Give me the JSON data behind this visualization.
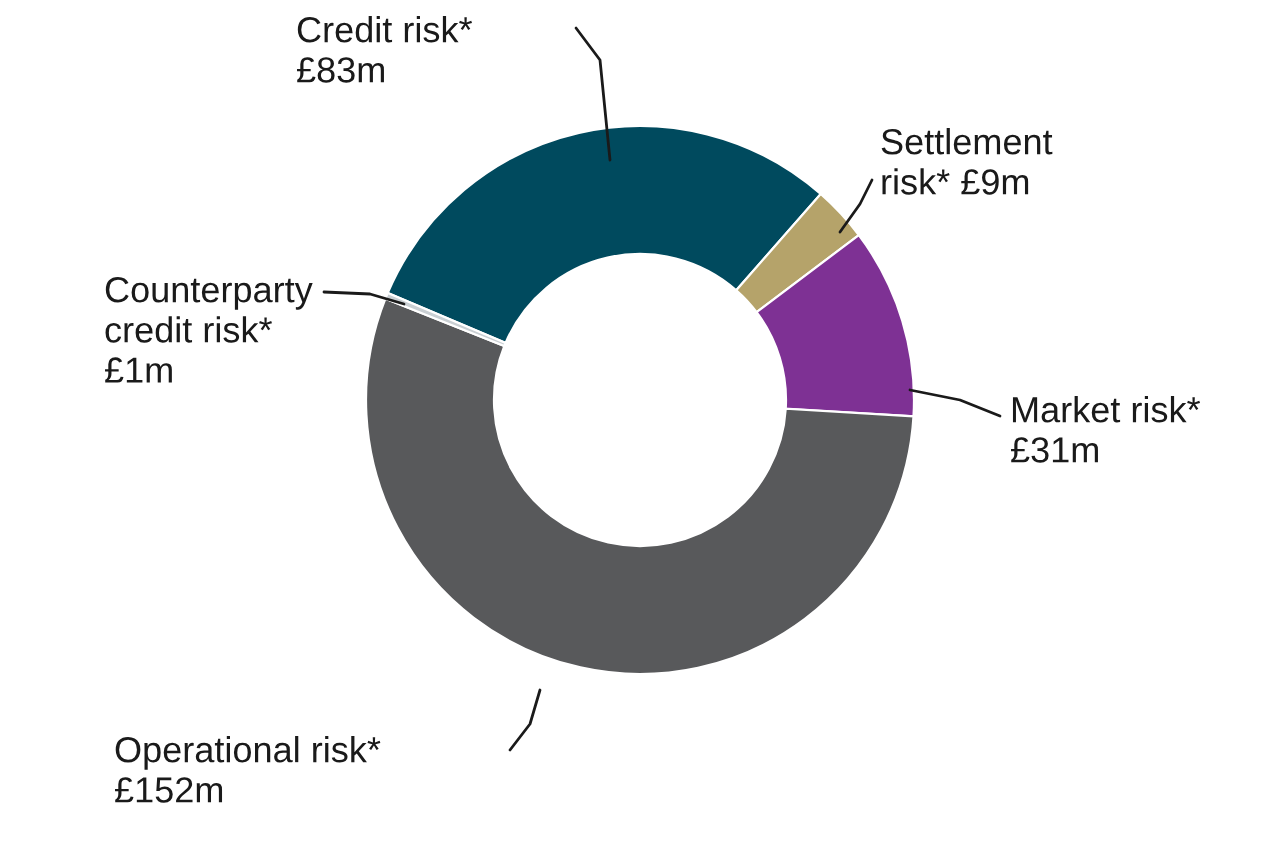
{
  "chart_data": {
    "type": "donut",
    "categories": [
      "Credit risk*",
      "Settlement risk*",
      "Market risk*",
      "Operational risk*",
      "Counterparty credit risk*"
    ],
    "values": [
      83,
      9,
      31,
      152,
      1
    ],
    "value_labels": [
      "£83m",
      "£9m",
      "£31m",
      "£152m",
      "£1m"
    ],
    "colors": [
      "#004a5e",
      "#b5a36a",
      "#7e3194",
      "#58595b",
      "#c9cfd3"
    ],
    "legend": false
  }
}
